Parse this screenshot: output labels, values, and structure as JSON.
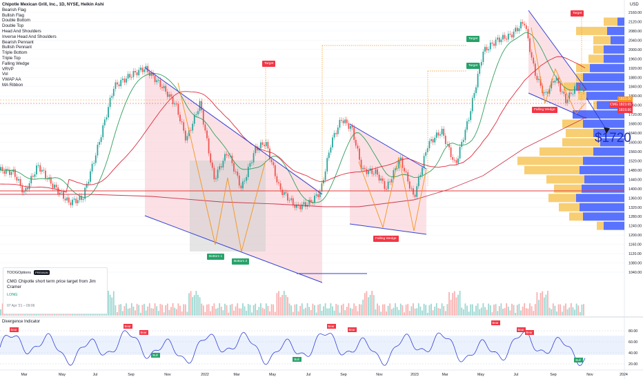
{
  "header": {
    "symbol_title": "Chipotle Mexican Grill, Inc., 1D, NYSE, Heikin Ashi",
    "currency": "USD"
  },
  "indicator_list": [
    "Bearish Flag",
    "Bullish Flag",
    "Double Bottom",
    "Double Top",
    "Head And Shoulders",
    "Inverse Head And Shoulders",
    "Bearish Pennant",
    "Bullish Pennant",
    "Triple Bottom",
    "Triple Top",
    "Falling Wedge",
    "VRVP",
    "Vol",
    "VWAP AA",
    "MA Ribbon"
  ],
  "price_axis": {
    "ticks": [
      "2160.00",
      "2120.00",
      "2080.00",
      "2040.00",
      "2000.00",
      "1960.00",
      "1920.00",
      "1880.00",
      "1840.00",
      "1800.00",
      "1760.00",
      "1720.00",
      "1680.00",
      "1640.00",
      "1600.00",
      "1560.00",
      "1520.00",
      "1480.00",
      "1440.00",
      "1400.00",
      "1360.00",
      "1320.00",
      "1280.00",
      "1240.00",
      "1200.00",
      "1160.00",
      "1120.00",
      "1080.00",
      "1040.00"
    ],
    "labels": {
      "current_high": "1833.00",
      "symbol_price": "1823.65",
      "low": "1819.66",
      "symbol": "CMG"
    }
  },
  "osc_axis": {
    "ticks": [
      "80.00",
      "60.00",
      "40.00",
      "20.00"
    ]
  },
  "time_axis": [
    "Mar",
    "May",
    "Jul",
    "Sep",
    "Nov",
    "2022",
    "Mar",
    "May",
    "Jul",
    "Sep",
    "Nov",
    "2023",
    "Mar",
    "May",
    "Jul",
    "Sep",
    "Nov",
    "2024"
  ],
  "annotations": {
    "target_1": "Target",
    "target_2": "Target",
    "target_3": "Target",
    "target_4": "Target",
    "bottom_1": "Bottom 1",
    "bottom_2": "Bottom 2",
    "falling_wedge_1": "Falling Wedge",
    "falling_wedge_2": "Falling Wedge",
    "big_price": "$1720"
  },
  "oscillator": {
    "title": "Divergence Indicator",
    "bear_label": "Bear",
    "bull_label": "Bull"
  },
  "news_card": {
    "brand": "TOOGOptions",
    "badge": "PREMIUM",
    "headline": "CMG Chipotle short term price target from Jim Cramer",
    "direction": "LONG",
    "date": "07 Apr '21 – 09:06"
  },
  "colors": {
    "up": "#26a69a",
    "down": "#ef5350",
    "pattern_fill": "#f8c8d0",
    "trendline": "#2f3fd6",
    "vp_up": "#3d5afe",
    "vp_down": "#f7c65a"
  }
}
